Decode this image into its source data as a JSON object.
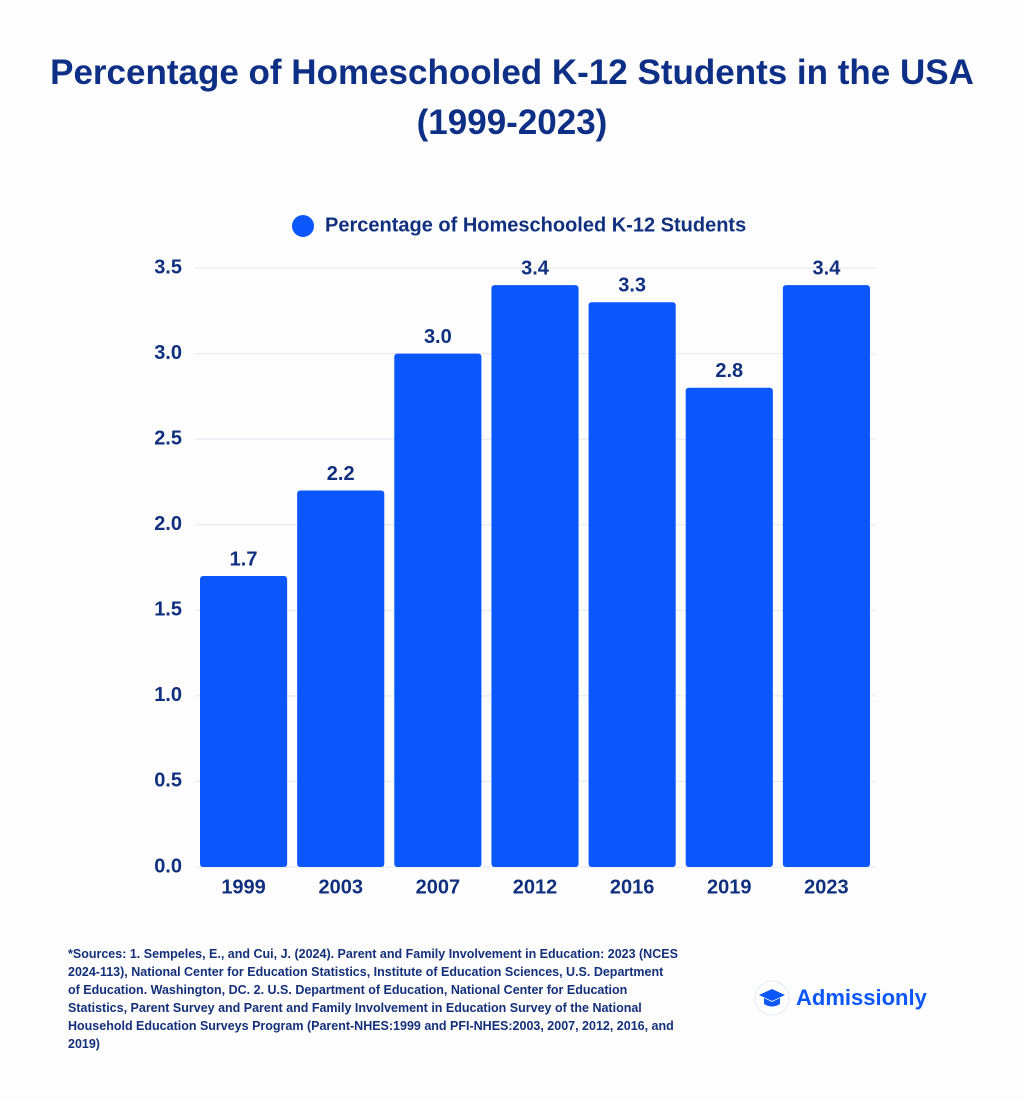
{
  "chart_data": {
    "type": "bar",
    "title": "Percentage of Homeschooled K-12 Students in the USA (1999-2023)",
    "categories": [
      "1999",
      "2003",
      "2007",
      "2012",
      "2016",
      "2019",
      "2023"
    ],
    "series": [
      {
        "name": "Percentage of Homeschooled K-12 Students",
        "color": "#0b57fb",
        "values": [
          1.7,
          2.2,
          3.0,
          3.4,
          3.3,
          2.8,
          3.4
        ],
        "value_labels": [
          "1.7",
          "2.2",
          "3.0",
          "3.4",
          "3.3",
          "2.8",
          "3.4"
        ]
      }
    ],
    "ylim": [
      0,
      3.5
    ],
    "yticks": [
      {
        "value": 0,
        "label": "0.0"
      },
      0.5,
      {
        "value": 1,
        "label": "1.0"
      },
      1.5,
      {
        "value": 2,
        "label": "2.0"
      },
      2.5,
      {
        "value": 3,
        "label": "3.0"
      },
      3.5
    ],
    "grid": true
  },
  "source_note": "*Sources: 1. Sempeles, E., and Cui, J. (2024). Parent and Family Involvement in Education: 2023 (NCES 2024-113), National Center for Education Statistics, Institute of Education Sciences, U.S. Department of Education. Washington, DC. 2. U.S. Department of Education, National Center for Education Statistics, Parent Survey and Parent and Family Involvement in Education Survey of the National Household Education Surveys Program (Parent-NHES:1999 and PFI-NHES:2003, 2007, 2012, 2016, and 2019)",
  "logo": "Admissionly"
}
